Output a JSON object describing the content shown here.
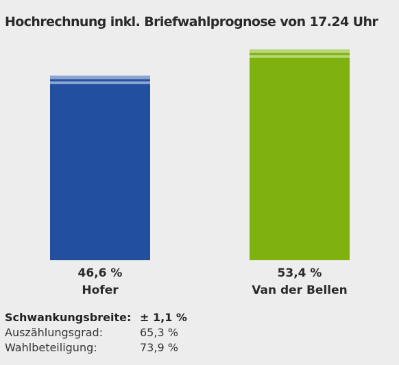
{
  "title": "Hochrechnung inkl. Briefwahlprognose von 17.24 Uhr",
  "chart_data": {
    "type": "bar",
    "title": "Hochrechnung inkl. Briefwahlprognose von 17.24 Uhr",
    "categories": [
      "Hofer",
      "Van der Bellen"
    ],
    "values": [
      46.6,
      53.4
    ],
    "value_labels": [
      "46,6 %",
      "53,4 %"
    ],
    "margin_of_error": 1.1,
    "colors": [
      "#22509e",
      "#7fb20f"
    ],
    "band_colors": [
      "#8aa5d1",
      "#b9d67a"
    ],
    "grid": false,
    "legend": "none"
  },
  "stats": [
    {
      "label": "Schwankungsbreite:",
      "value": "± 1,1 %",
      "bold": true
    },
    {
      "label": "Auszählungsgrad:",
      "value": "65,3 %",
      "bold": false
    },
    {
      "label": "Wahlbeteiligung:",
      "value": "73,9 %",
      "bold": false
    }
  ]
}
